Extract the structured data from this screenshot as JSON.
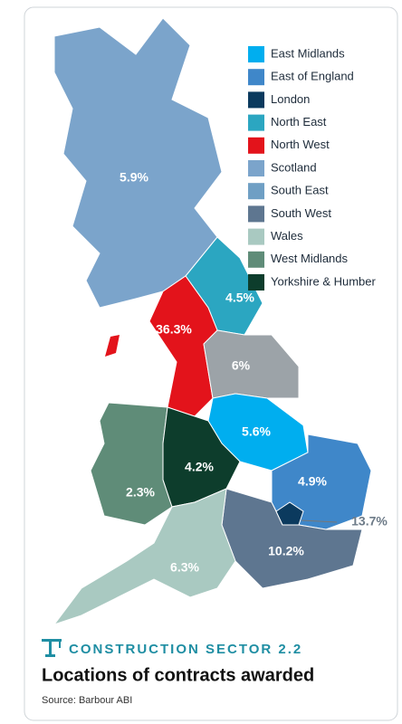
{
  "header": {
    "section": "CONSTRUCTION SECTOR 2.2",
    "title": "Locations of contracts awarded",
    "source": "Source: Barbour ABI"
  },
  "legend": [
    {
      "name": "East Midlands",
      "color": "#00aeef"
    },
    {
      "name": "East of England",
      "color": "#3f87c9"
    },
    {
      "name": "London",
      "color": "#0b3a5e"
    },
    {
      "name": "North East",
      "color": "#2ba6c1"
    },
    {
      "name": "North West",
      "color": "#e3131b"
    },
    {
      "name": "Scotland",
      "color": "#7ba4cb"
    },
    {
      "name": "South East",
      "color": "#6f9fc4"
    },
    {
      "name": "South West",
      "color": "#5e7690"
    },
    {
      "name": "Wales",
      "color": "#a9c9c1"
    },
    {
      "name": "West Midlands",
      "color": "#5f8c78"
    },
    {
      "name": "Yorkshire & Humber",
      "color": "#0d3d2c"
    }
  ],
  "regions": [
    {
      "value": 5.9,
      "value_label": "5.9%",
      "color": "#7ba4cb"
    },
    {
      "value": 4.5,
      "value_label": "4.5%",
      "color": "#2ba6c1"
    },
    {
      "value": 36.3,
      "value_label": "36.3%",
      "color": "#e3131b"
    },
    {
      "value": 6,
      "value_label": "6%",
      "color": "#9ca3a8"
    },
    {
      "value": 5.6,
      "value_label": "5.6%",
      "color": "#00aeef"
    },
    {
      "value": 2.3,
      "value_label": "2.3%",
      "color": "#5f8c78"
    },
    {
      "value": 4.2,
      "value_label": "4.2%",
      "color": "#0d3d2c"
    },
    {
      "value": 4.9,
      "value_label": "4.9%",
      "color": "#3f87c9"
    },
    {
      "value": 10.2,
      "value_label": "10.2%",
      "color": "#5e7690"
    },
    {
      "value": 6.3,
      "value_label": "6.3%",
      "color": "#a9c9c1"
    },
    {
      "value": 13.7,
      "value_label": "13.7%",
      "color": "#0b3a5e"
    }
  ]
}
